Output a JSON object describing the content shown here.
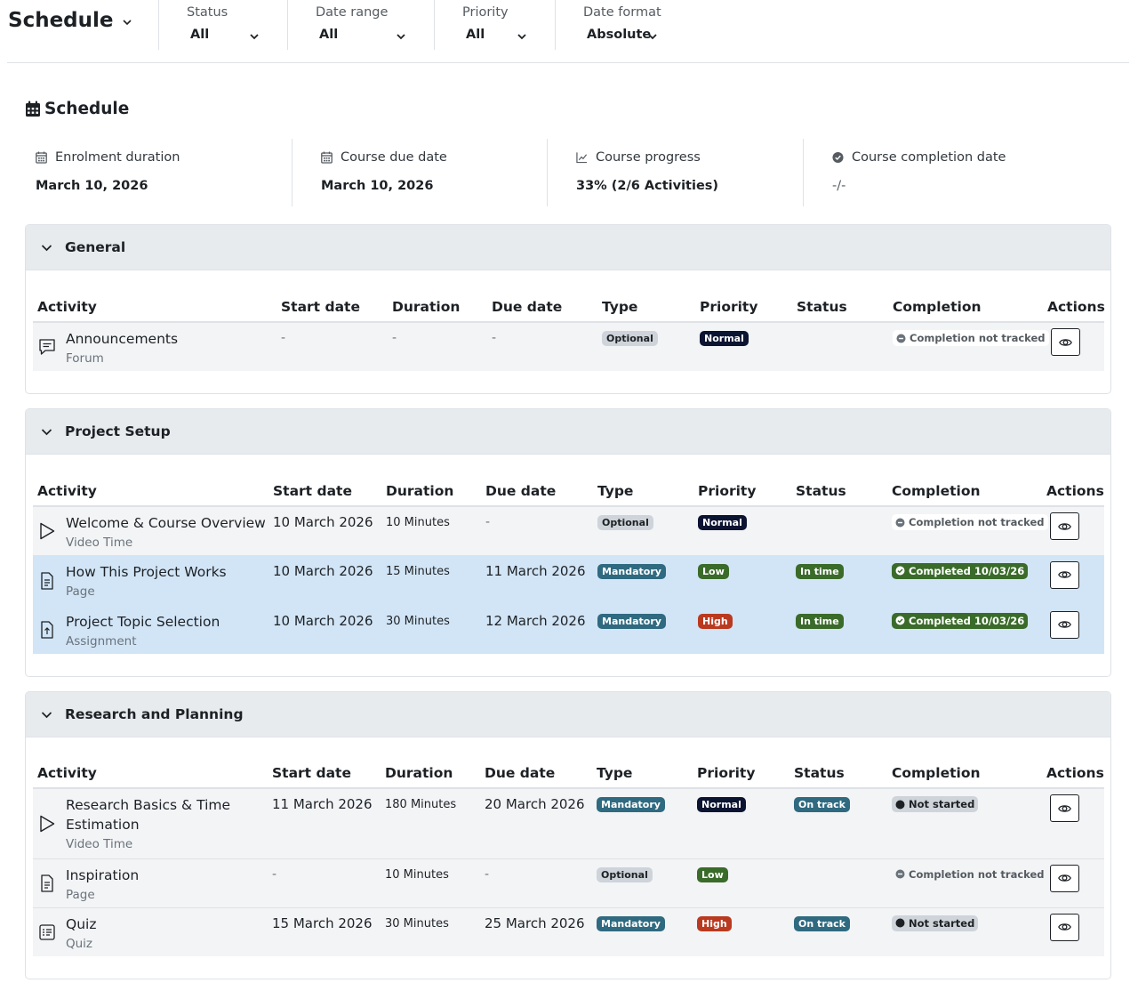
{
  "header": {
    "title": "Schedule",
    "filters": [
      {
        "label": "Status",
        "value": "All"
      },
      {
        "label": "Date range",
        "value": "All"
      },
      {
        "label": "Priority",
        "value": "All"
      },
      {
        "label": "Date format",
        "value": "Absolute"
      }
    ]
  },
  "schedule": {
    "heading": "Schedule",
    "stats": [
      {
        "label": "Enrolment duration",
        "value": "March 10, 2026",
        "icon": "calendar-icon"
      },
      {
        "label": "Course due date",
        "value": "March 10, 2026",
        "icon": "calendar-icon"
      },
      {
        "label": "Course progress",
        "value": "33% (2/6 Activities)",
        "icon": "chart-line-icon"
      },
      {
        "label": "Course completion date",
        "value": "-/-",
        "icon": "check-circle-icon"
      }
    ]
  },
  "columns": [
    "Activity",
    "Start date",
    "Duration",
    "Due date",
    "Type",
    "Priority",
    "Status",
    "Completion",
    "Actions"
  ],
  "sections": [
    {
      "title": "General",
      "rows": [
        {
          "name": "Announcements",
          "kind": "Forum",
          "icon": "forum-icon",
          "start": "-",
          "duration": "-",
          "due": "-",
          "type": "Optional",
          "priority": "Normal",
          "status": "",
          "completion": "Completion not tracked"
        }
      ]
    },
    {
      "title": "Project Setup",
      "rows": [
        {
          "name": "Welcome & Course Overview",
          "kind": "Video Time",
          "icon": "play-icon",
          "start": "10 March 2026",
          "duration": "10 Minutes",
          "due": "-",
          "type": "Optional",
          "priority": "Normal",
          "status": "",
          "completion": "Completion not tracked"
        },
        {
          "name": "How This Project Works",
          "kind": "Page",
          "icon": "page-icon",
          "start": "10 March 2026",
          "duration": "15 Minutes",
          "due": "11 March 2026",
          "type": "Mandatory",
          "priority": "Low",
          "status": "In time",
          "completion": "Completed 10/03/26"
        },
        {
          "name": "Project Topic Selection",
          "kind": "Assignment",
          "icon": "assignment-icon",
          "start": "10 March 2026",
          "duration": "30 Minutes",
          "due": "12 March 2026",
          "type": "Mandatory",
          "priority": "High",
          "status": "In time",
          "completion": "Completed 10/03/26"
        }
      ]
    },
    {
      "title": "Research and Planning",
      "rows": [
        {
          "name": "Research Basics & Time Estimation",
          "kind": "Video Time",
          "icon": "play-icon",
          "start": "11 March 2026",
          "duration": "180 Minutes",
          "due": "20 March 2026",
          "type": "Mandatory",
          "priority": "Normal",
          "status": "On track",
          "completion": "Not started"
        },
        {
          "name": "Inspiration",
          "kind": "Page",
          "icon": "page-icon",
          "start": "-",
          "duration": "10 Minutes",
          "due": "-",
          "type": "Optional",
          "priority": "Low",
          "status": "",
          "completion": "Completion not tracked"
        },
        {
          "name": "Quiz",
          "kind": "Quiz",
          "icon": "quiz-icon",
          "start": "15 March 2026",
          "duration": "30 Minutes",
          "due": "25 March 2026",
          "type": "Mandatory",
          "priority": "High",
          "status": "On track",
          "completion": "Not started"
        }
      ]
    }
  ],
  "colors": {
    "mandatory": "#2f6a80",
    "optional": "#ced4da",
    "normal": "#0b1431",
    "low": "#3a6b2a",
    "high": "#ba3a20",
    "completed_row": "#d2e5f6"
  }
}
